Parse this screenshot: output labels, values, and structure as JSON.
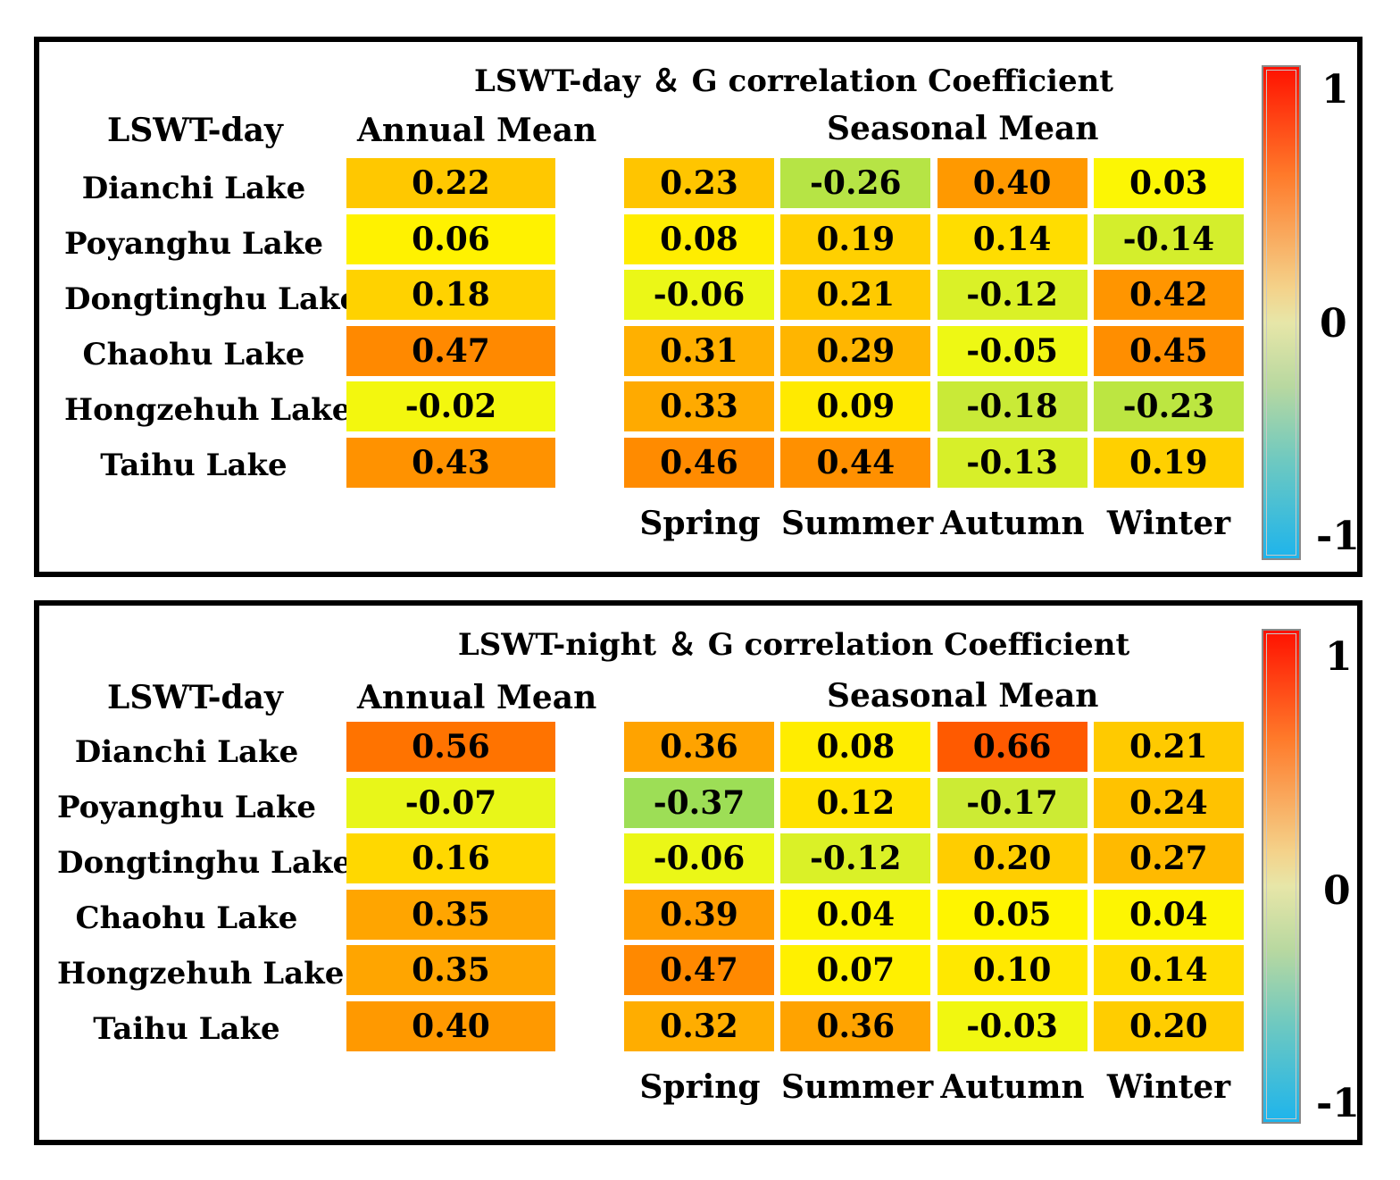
{
  "chart_data": [
    {
      "type": "heatmap",
      "title": "LSWT-day ＆ G correlation Coefficient",
      "row_header": "LSWT-day",
      "annual_header": "Annual Mean",
      "seasonal_header": "Seasonal Mean",
      "rows": [
        "Dianchi Lake",
        "Poyanghu Lake",
        "Dongtinghu Lake",
        "Chaohu Lake",
        "Hongzehuh Lake",
        "Taihu Lake"
      ],
      "annual_values": [
        "0.22",
        "0.06",
        "0.18",
        "0.47",
        "-0.02",
        "0.43"
      ],
      "seasons": [
        "Spring",
        "Summer",
        "Autumn",
        "Winter"
      ],
      "seasonal_values": [
        [
          "0.23",
          "-0.26",
          "0.40",
          "0.03"
        ],
        [
          "0.08",
          "0.19",
          "0.14",
          "-0.14"
        ],
        [
          "-0.06",
          "0.21",
          "-0.12",
          "0.42"
        ],
        [
          "0.31",
          "0.29",
          "-0.05",
          "0.45"
        ],
        [
          "0.33",
          "0.09",
          "-0.18",
          "-0.23"
        ],
        [
          "0.46",
          "0.44",
          "-0.13",
          "0.19"
        ]
      ],
      "colorbar": {
        "max_label": "1",
        "mid_label": "0",
        "min_label": "-1",
        "range": [
          -1,
          1
        ]
      }
    },
    {
      "type": "heatmap",
      "title": "LSWT-night ＆ G correlation Coefficient",
      "row_header": "LSWT-day",
      "annual_header": "Annual Mean",
      "seasonal_header": "Seasonal Mean",
      "rows": [
        "Dianchi Lake",
        "Poyanghu Lake",
        "Dongtinghu Lake",
        "Chaohu Lake",
        "Hongzehuh Lake",
        "Taihu Lake"
      ],
      "annual_values": [
        "0.56",
        "-0.07",
        "0.16",
        "0.35",
        "0.35",
        "0.40"
      ],
      "seasons": [
        "Spring",
        "Summer",
        "Autumn",
        "Winter"
      ],
      "seasonal_values": [
        [
          "0.36",
          "0.08",
          "0.66",
          "0.21"
        ],
        [
          "-0.37",
          "0.12",
          "-0.17",
          "0.24"
        ],
        [
          "-0.06",
          "-0.12",
          "0.20",
          "0.27"
        ],
        [
          "0.39",
          "0.04",
          "0.05",
          "0.04"
        ],
        [
          "0.47",
          "0.07",
          "0.10",
          "0.14"
        ],
        [
          "0.32",
          "0.36",
          "-0.03",
          "0.20"
        ]
      ],
      "colorbar": {
        "max_label": "1",
        "mid_label": "0",
        "min_label": "-1",
        "range": [
          -1,
          1
        ]
      }
    }
  ]
}
